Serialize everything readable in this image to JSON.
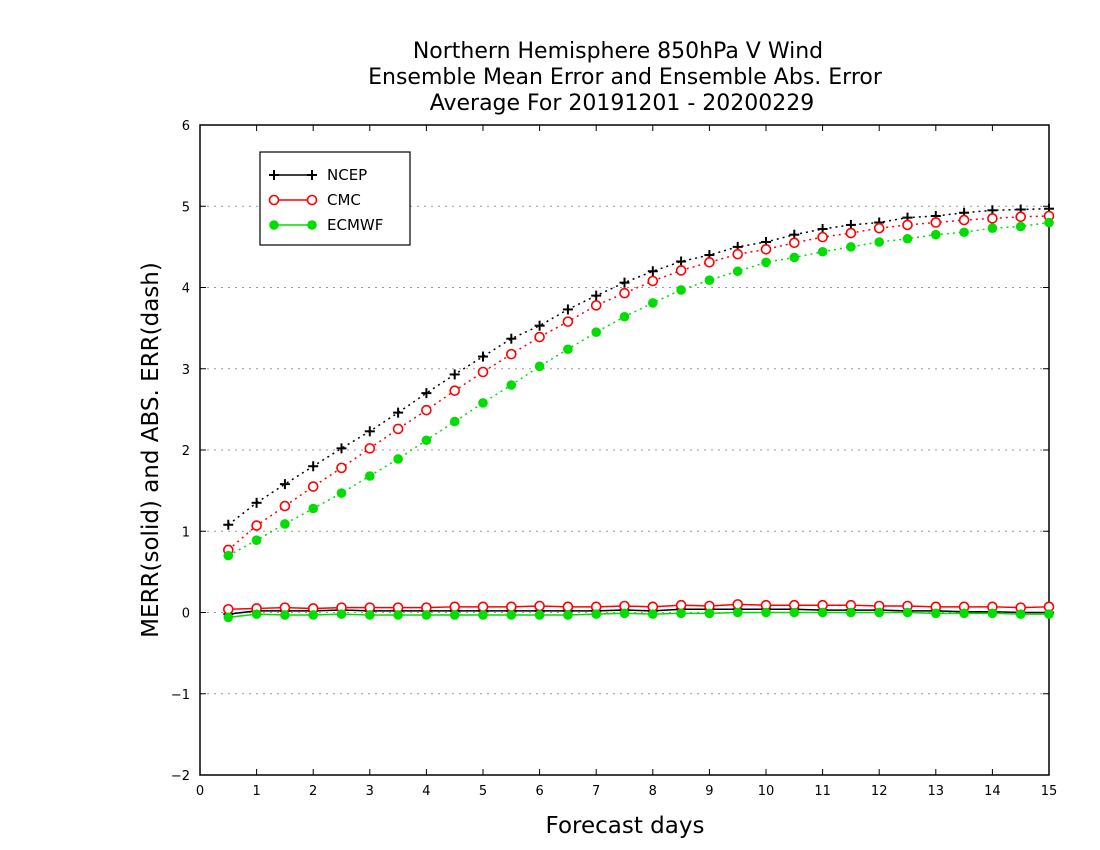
{
  "chart_data": {
    "type": "line",
    "title": [
      "Northern Hemisphere 850hPa V Wind",
      "Ensemble Mean Error and Ensemble Abs. Error",
      "Average For 20191201 - 20200229"
    ],
    "xlabel": "Forecast days",
    "ylabel": "MERR(solid) and ABS. ERR(dash)",
    "xlim": [
      0,
      15
    ],
    "ylim": [
      -2,
      6
    ],
    "x_ticks": [
      "0",
      "1",
      "2",
      "3",
      "4",
      "5",
      "6",
      "7",
      "8",
      "9",
      "10",
      "11",
      "12",
      "13",
      "14",
      "15"
    ],
    "y_ticks": [
      "−2",
      "−1",
      "0",
      "1",
      "2",
      "3",
      "4",
      "5",
      "6"
    ],
    "grid": "dotted horizontal",
    "legend_position": "top-left",
    "x": [
      0.5,
      1,
      1.5,
      2,
      2.5,
      3,
      3.5,
      4,
      4.5,
      5,
      5.5,
      6,
      6.5,
      7,
      7.5,
      8,
      8.5,
      9,
      9.5,
      10,
      10.5,
      11,
      11.5,
      12,
      12.5,
      13,
      13.5,
      14,
      14.5,
      15
    ],
    "series": [
      {
        "name": "NCEP",
        "color": "#000000",
        "marker": "plus",
        "abs_err": [
          1.08,
          1.35,
          1.58,
          1.8,
          2.02,
          2.23,
          2.46,
          2.7,
          2.93,
          3.15,
          3.37,
          3.53,
          3.73,
          3.9,
          4.06,
          4.2,
          4.32,
          4.4,
          4.5,
          4.56,
          4.65,
          4.72,
          4.77,
          4.8,
          4.86,
          4.88,
          4.92,
          4.95,
          4.96,
          4.97
        ],
        "mean_err": [
          -0.02,
          0.02,
          0.02,
          0.02,
          0.03,
          0.02,
          0.02,
          0.02,
          0.02,
          0.02,
          0.02,
          0.02,
          0.02,
          0.02,
          0.03,
          0.02,
          0.04,
          0.04,
          0.04,
          0.04,
          0.04,
          0.03,
          0.03,
          0.03,
          0.02,
          0.02,
          0.01,
          0.01,
          0.0,
          0.0
        ]
      },
      {
        "name": "CMC",
        "color": "#ff0000",
        "marker": "open-circle",
        "abs_err": [
          0.77,
          1.07,
          1.31,
          1.55,
          1.78,
          2.02,
          2.26,
          2.49,
          2.73,
          2.96,
          3.18,
          3.39,
          3.58,
          3.78,
          3.93,
          4.08,
          4.21,
          4.31,
          4.41,
          4.47,
          4.55,
          4.62,
          4.67,
          4.73,
          4.77,
          4.8,
          4.83,
          4.85,
          4.87,
          4.88
        ],
        "mean_err": [
          0.04,
          0.05,
          0.06,
          0.05,
          0.06,
          0.06,
          0.06,
          0.06,
          0.07,
          0.07,
          0.07,
          0.08,
          0.07,
          0.07,
          0.08,
          0.07,
          0.09,
          0.08,
          0.1,
          0.09,
          0.09,
          0.09,
          0.09,
          0.08,
          0.08,
          0.07,
          0.07,
          0.07,
          0.06,
          0.07
        ]
      },
      {
        "name": "ECMWF",
        "color": "#00dd00",
        "marker": "filled-circle",
        "abs_err": [
          0.7,
          0.89,
          1.09,
          1.28,
          1.47,
          1.68,
          1.89,
          2.12,
          2.35,
          2.58,
          2.8,
          3.03,
          3.24,
          3.45,
          3.64,
          3.81,
          3.97,
          4.09,
          4.2,
          4.31,
          4.37,
          4.44,
          4.5,
          4.56,
          4.6,
          4.65,
          4.68,
          4.73,
          4.75,
          4.8
        ],
        "mean_err": [
          -0.06,
          -0.02,
          -0.03,
          -0.03,
          -0.02,
          -0.03,
          -0.03,
          -0.03,
          -0.03,
          -0.03,
          -0.03,
          -0.03,
          -0.03,
          -0.02,
          -0.01,
          -0.02,
          -0.01,
          -0.01,
          0.0,
          0.0,
          0.0,
          0.0,
          0.0,
          0.0,
          0.0,
          -0.01,
          -0.01,
          -0.01,
          -0.02,
          -0.02
        ]
      }
    ]
  }
}
